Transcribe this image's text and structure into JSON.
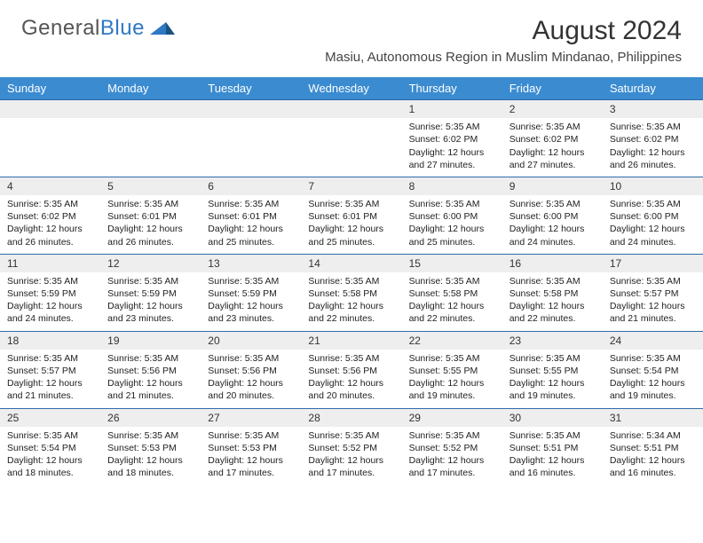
{
  "brand": {
    "name_part1": "General",
    "name_part2": "Blue",
    "accent_color": "#2f78c4"
  },
  "title": "August 2024",
  "location": "Masiu, Autonomous Region in Muslim Mindanao, Philippines",
  "header_bg": "#3b8bd0",
  "daynum_bg": "#eeeeee",
  "week_border": "#2f6ca8",
  "columns": [
    "Sunday",
    "Monday",
    "Tuesday",
    "Wednesday",
    "Thursday",
    "Friday",
    "Saturday"
  ],
  "weeks": [
    [
      null,
      null,
      null,
      null,
      {
        "n": "1",
        "sunrise": "5:35 AM",
        "sunset": "6:02 PM",
        "dl": "12 hours and 27 minutes."
      },
      {
        "n": "2",
        "sunrise": "5:35 AM",
        "sunset": "6:02 PM",
        "dl": "12 hours and 27 minutes."
      },
      {
        "n": "3",
        "sunrise": "5:35 AM",
        "sunset": "6:02 PM",
        "dl": "12 hours and 26 minutes."
      }
    ],
    [
      {
        "n": "4",
        "sunrise": "5:35 AM",
        "sunset": "6:02 PM",
        "dl": "12 hours and 26 minutes."
      },
      {
        "n": "5",
        "sunrise": "5:35 AM",
        "sunset": "6:01 PM",
        "dl": "12 hours and 26 minutes."
      },
      {
        "n": "6",
        "sunrise": "5:35 AM",
        "sunset": "6:01 PM",
        "dl": "12 hours and 25 minutes."
      },
      {
        "n": "7",
        "sunrise": "5:35 AM",
        "sunset": "6:01 PM",
        "dl": "12 hours and 25 minutes."
      },
      {
        "n": "8",
        "sunrise": "5:35 AM",
        "sunset": "6:00 PM",
        "dl": "12 hours and 25 minutes."
      },
      {
        "n": "9",
        "sunrise": "5:35 AM",
        "sunset": "6:00 PM",
        "dl": "12 hours and 24 minutes."
      },
      {
        "n": "10",
        "sunrise": "5:35 AM",
        "sunset": "6:00 PM",
        "dl": "12 hours and 24 minutes."
      }
    ],
    [
      {
        "n": "11",
        "sunrise": "5:35 AM",
        "sunset": "5:59 PM",
        "dl": "12 hours and 24 minutes."
      },
      {
        "n": "12",
        "sunrise": "5:35 AM",
        "sunset": "5:59 PM",
        "dl": "12 hours and 23 minutes."
      },
      {
        "n": "13",
        "sunrise": "5:35 AM",
        "sunset": "5:59 PM",
        "dl": "12 hours and 23 minutes."
      },
      {
        "n": "14",
        "sunrise": "5:35 AM",
        "sunset": "5:58 PM",
        "dl": "12 hours and 22 minutes."
      },
      {
        "n": "15",
        "sunrise": "5:35 AM",
        "sunset": "5:58 PM",
        "dl": "12 hours and 22 minutes."
      },
      {
        "n": "16",
        "sunrise": "5:35 AM",
        "sunset": "5:58 PM",
        "dl": "12 hours and 22 minutes."
      },
      {
        "n": "17",
        "sunrise": "5:35 AM",
        "sunset": "5:57 PM",
        "dl": "12 hours and 21 minutes."
      }
    ],
    [
      {
        "n": "18",
        "sunrise": "5:35 AM",
        "sunset": "5:57 PM",
        "dl": "12 hours and 21 minutes."
      },
      {
        "n": "19",
        "sunrise": "5:35 AM",
        "sunset": "5:56 PM",
        "dl": "12 hours and 21 minutes."
      },
      {
        "n": "20",
        "sunrise": "5:35 AM",
        "sunset": "5:56 PM",
        "dl": "12 hours and 20 minutes."
      },
      {
        "n": "21",
        "sunrise": "5:35 AM",
        "sunset": "5:56 PM",
        "dl": "12 hours and 20 minutes."
      },
      {
        "n": "22",
        "sunrise": "5:35 AM",
        "sunset": "5:55 PM",
        "dl": "12 hours and 19 minutes."
      },
      {
        "n": "23",
        "sunrise": "5:35 AM",
        "sunset": "5:55 PM",
        "dl": "12 hours and 19 minutes."
      },
      {
        "n": "24",
        "sunrise": "5:35 AM",
        "sunset": "5:54 PM",
        "dl": "12 hours and 19 minutes."
      }
    ],
    [
      {
        "n": "25",
        "sunrise": "5:35 AM",
        "sunset": "5:54 PM",
        "dl": "12 hours and 18 minutes."
      },
      {
        "n": "26",
        "sunrise": "5:35 AM",
        "sunset": "5:53 PM",
        "dl": "12 hours and 18 minutes."
      },
      {
        "n": "27",
        "sunrise": "5:35 AM",
        "sunset": "5:53 PM",
        "dl": "12 hours and 17 minutes."
      },
      {
        "n": "28",
        "sunrise": "5:35 AM",
        "sunset": "5:52 PM",
        "dl": "12 hours and 17 minutes."
      },
      {
        "n": "29",
        "sunrise": "5:35 AM",
        "sunset": "5:52 PM",
        "dl": "12 hours and 17 minutes."
      },
      {
        "n": "30",
        "sunrise": "5:35 AM",
        "sunset": "5:51 PM",
        "dl": "12 hours and 16 minutes."
      },
      {
        "n": "31",
        "sunrise": "5:34 AM",
        "sunset": "5:51 PM",
        "dl": "12 hours and 16 minutes."
      }
    ]
  ],
  "labels": {
    "sunrise": "Sunrise: ",
    "sunset": "Sunset: ",
    "daylight": "Daylight: "
  }
}
